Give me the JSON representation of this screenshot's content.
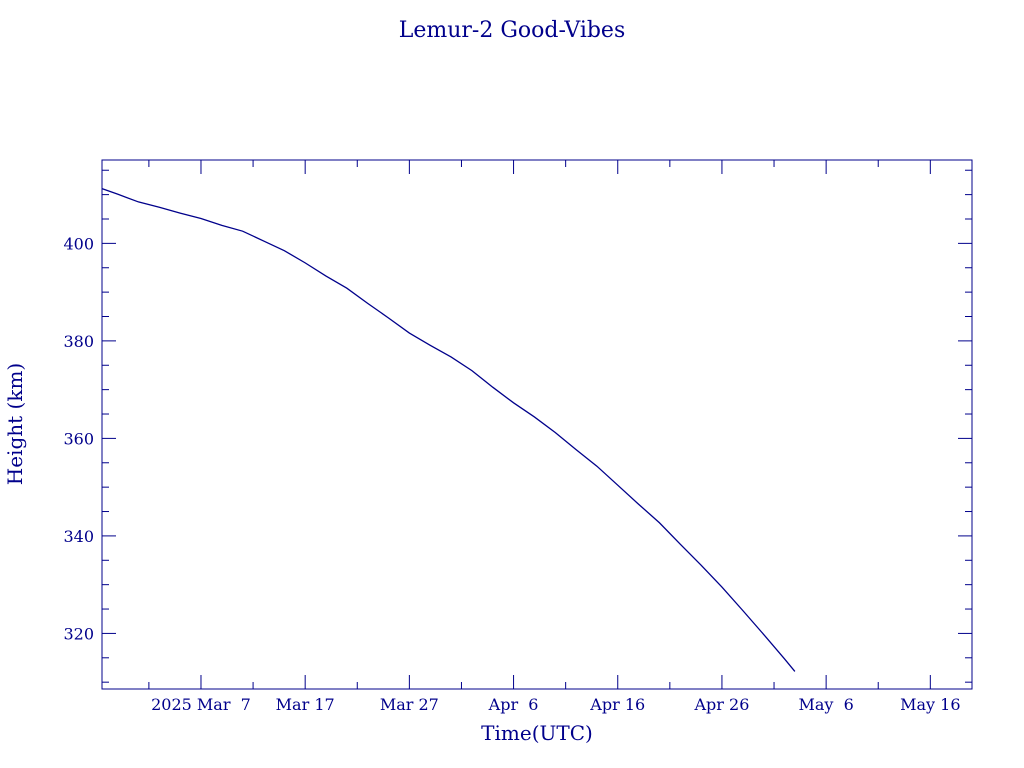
{
  "chart_data": {
    "type": "line",
    "title": "Lemur-2 Good-Vibes",
    "xlabel": "Time(UTC)",
    "ylabel": "Height (km)",
    "x_axis_type": "date",
    "xlim": [
      "2025-02-25T12:00",
      "2025-05-20T00:00"
    ],
    "ylim": [
      308.6,
      417.1
    ],
    "x_ticks": [
      {
        "date": "2025-03-07",
        "label": "2025 Mar  7"
      },
      {
        "date": "2025-03-17",
        "label": "Mar 17"
      },
      {
        "date": "2025-03-27",
        "label": "Mar 27"
      },
      {
        "date": "2025-04-06",
        "label": "Apr  6"
      },
      {
        "date": "2025-04-16",
        "label": "Apr 16"
      },
      {
        "date": "2025-04-26",
        "label": "Apr 26"
      },
      {
        "date": "2025-05-06",
        "label": "May  6"
      },
      {
        "date": "2025-05-16",
        "label": "May 16"
      }
    ],
    "y_ticks": [
      320,
      340,
      360,
      380,
      400
    ],
    "grid": false,
    "line_color": "#00008b",
    "series": [
      {
        "x": [
          "2025-02-25",
          "2025-02-27",
          "2025-03-01",
          "2025-03-03",
          "2025-03-05",
          "2025-03-07",
          "2025-03-09",
          "2025-03-11",
          "2025-03-13",
          "2025-03-15",
          "2025-03-17",
          "2025-03-19",
          "2025-03-21",
          "2025-03-23",
          "2025-03-25",
          "2025-03-27",
          "2025-03-29",
          "2025-03-31",
          "2025-04-02",
          "2025-04-04",
          "2025-04-06",
          "2025-04-08",
          "2025-04-10",
          "2025-04-12",
          "2025-04-14",
          "2025-04-16",
          "2025-04-18",
          "2025-04-20",
          "2025-04-22",
          "2025-04-24",
          "2025-04-26",
          "2025-04-28",
          "2025-04-30",
          "2025-05-02",
          "2025-05-03"
        ],
        "values": [
          411.6,
          410.1,
          408.5,
          407.4,
          406.2,
          405.1,
          403.7,
          402.5,
          400.5,
          398.5,
          396.0,
          393.3,
          390.8,
          387.7,
          384.7,
          381.6,
          379.1,
          376.7,
          373.9,
          370.5,
          367.3,
          364.4,
          361.2,
          357.7,
          354.3,
          350.4,
          346.5,
          342.7,
          338.3,
          334.0,
          329.5,
          324.7,
          319.8,
          314.8,
          312.2
        ]
      }
    ]
  }
}
